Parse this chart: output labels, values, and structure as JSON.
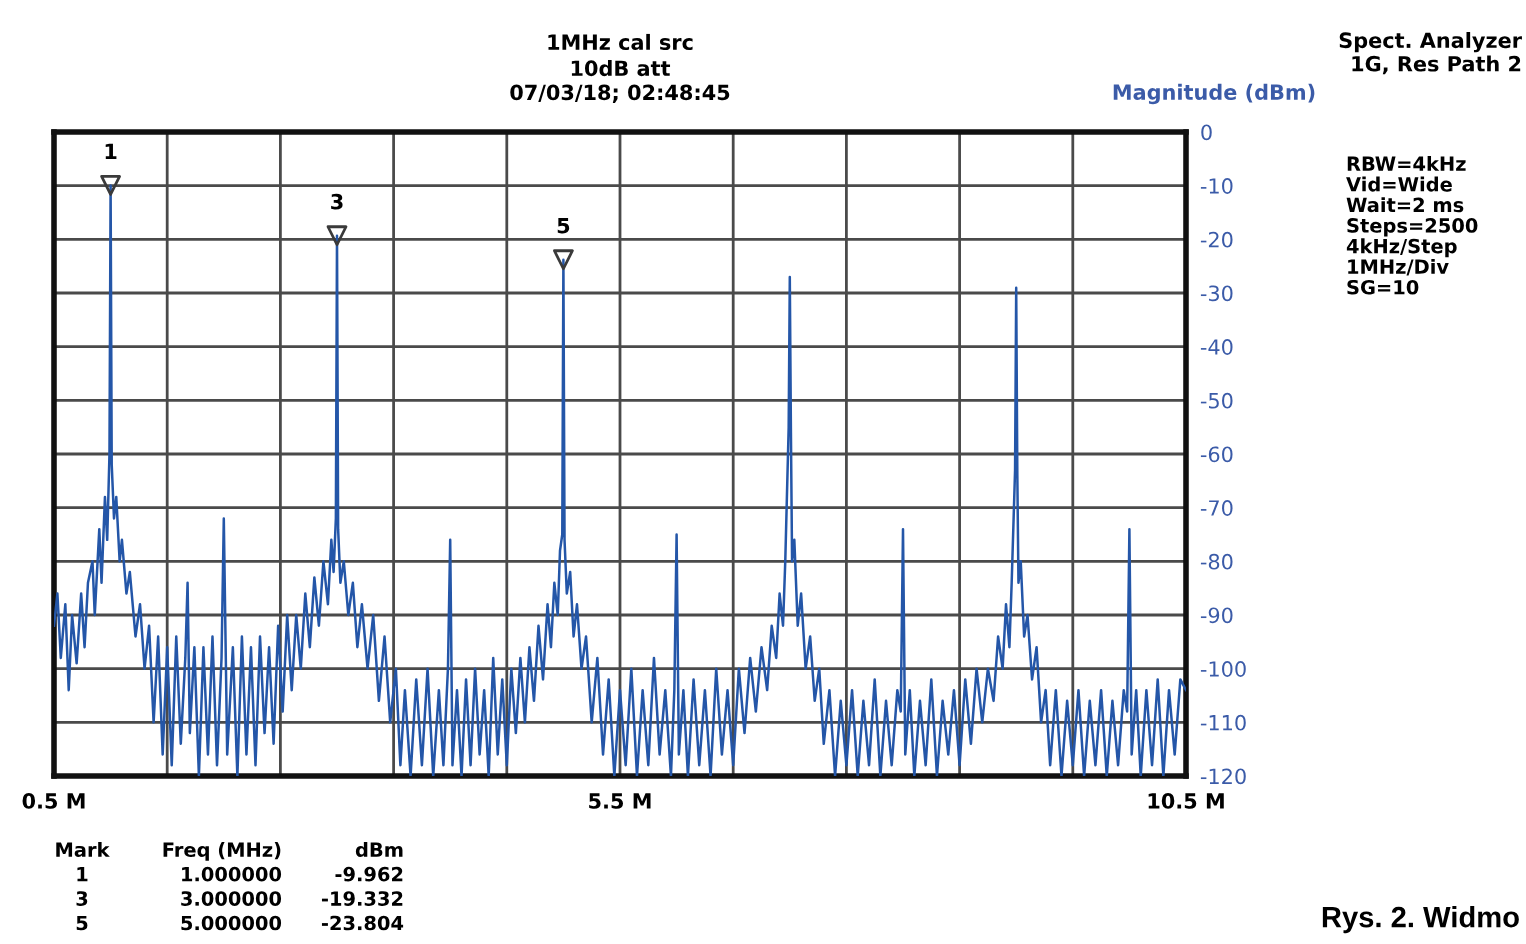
{
  "chart_data": {
    "type": "line",
    "title": "1MHz cal src",
    "subtitle": "10dB att\n07/03/18; 02:48:45",
    "ylabel": "Magnitude (dBm)",
    "xlim": [
      0.5,
      10.5
    ],
    "ylim": [
      -120,
      0
    ],
    "xticks": [
      {
        "value": 0.5,
        "label": "0.5 M"
      },
      {
        "value": 1.5,
        "label": null
      },
      {
        "value": 2.5,
        "label": null
      },
      {
        "value": 3.5,
        "label": null
      },
      {
        "value": 4.5,
        "label": null
      },
      {
        "value": 5.5,
        "label": "5.5 M"
      },
      {
        "value": 6.5,
        "label": null
      },
      {
        "value": 7.5,
        "label": null
      },
      {
        "value": 8.5,
        "label": null
      },
      {
        "value": 9.5,
        "label": null
      },
      {
        "value": 10.5,
        "label": "10.5 M"
      }
    ],
    "yticks": [
      0,
      -10,
      -20,
      -30,
      -40,
      -50,
      -60,
      -70,
      -80,
      -90,
      -100,
      -110,
      -120
    ],
    "grid": true,
    "series": [
      {
        "color": "#2456a8",
        "x": [
          0.5,
          0.53,
          0.56,
          0.6,
          0.63,
          0.66,
          0.7,
          0.74,
          0.77,
          0.8,
          0.84,
          0.86,
          0.9,
          0.92,
          0.95,
          0.97,
          0.99,
          1.0,
          1.01,
          1.03,
          1.05,
          1.08,
          1.1,
          1.14,
          1.17,
          1.22,
          1.26,
          1.3,
          1.34,
          1.38,
          1.42,
          1.46,
          1.5,
          1.54,
          1.58,
          1.62,
          1.66,
          1.68,
          1.7,
          1.74,
          1.78,
          1.82,
          1.86,
          1.9,
          1.94,
          1.98,
          2.0,
          2.03,
          2.08,
          2.12,
          2.16,
          2.2,
          2.24,
          2.28,
          2.32,
          2.36,
          2.4,
          2.44,
          2.48,
          2.52,
          2.56,
          2.6,
          2.64,
          2.68,
          2.72,
          2.76,
          2.8,
          2.84,
          2.88,
          2.92,
          2.95,
          2.97,
          2.99,
          3.0,
          3.01,
          3.03,
          3.06,
          3.1,
          3.14,
          3.18,
          3.22,
          3.27,
          3.32,
          3.37,
          3.42,
          3.47,
          3.52,
          3.56,
          3.6,
          3.65,
          3.7,
          3.75,
          3.8,
          3.85,
          3.9,
          3.94,
          3.98,
          4.0,
          4.02,
          4.06,
          4.1,
          4.14,
          4.18,
          4.22,
          4.26,
          4.3,
          4.34,
          4.38,
          4.42,
          4.46,
          4.5,
          4.54,
          4.58,
          4.62,
          4.66,
          4.7,
          4.74,
          4.78,
          4.82,
          4.86,
          4.89,
          4.92,
          4.95,
          4.97,
          4.99,
          5.0,
          5.01,
          5.03,
          5.06,
          5.09,
          5.12,
          5.16,
          5.2,
          5.25,
          5.3,
          5.35,
          5.4,
          5.45,
          5.5,
          5.55,
          5.6,
          5.65,
          5.7,
          5.75,
          5.8,
          5.85,
          5.9,
          5.95,
          5.98,
          6.0,
          6.02,
          6.06,
          6.1,
          6.15,
          6.2,
          6.25,
          6.3,
          6.35,
          6.4,
          6.45,
          6.5,
          6.55,
          6.6,
          6.65,
          6.7,
          6.75,
          6.8,
          6.84,
          6.88,
          6.91,
          6.94,
          6.96,
          6.99,
          7.0,
          7.01,
          7.02,
          7.04,
          7.07,
          7.1,
          7.14,
          7.18,
          7.22,
          7.26,
          7.3,
          7.35,
          7.4,
          7.45,
          7.5,
          7.55,
          7.6,
          7.65,
          7.7,
          7.75,
          7.8,
          7.85,
          7.9,
          7.95,
          7.98,
          8.0,
          8.02,
          8.06,
          8.1,
          8.15,
          8.2,
          8.25,
          8.3,
          8.35,
          8.4,
          8.45,
          8.5,
          8.55,
          8.6,
          8.65,
          8.7,
          8.75,
          8.8,
          8.84,
          8.88,
          8.91,
          8.94,
          8.96,
          8.99,
          9.0,
          9.01,
          9.02,
          9.04,
          9.07,
          9.1,
          9.14,
          9.18,
          9.22,
          9.26,
          9.3,
          9.35,
          9.4,
          9.45,
          9.5,
          9.55,
          9.6,
          9.65,
          9.7,
          9.75,
          9.8,
          9.85,
          9.9,
          9.95,
          9.98,
          10.0,
          10.02,
          10.06,
          10.1,
          10.15,
          10.2,
          10.25,
          10.3,
          10.35,
          10.4,
          10.45,
          10.5
        ],
        "values": [
          -92,
          -86,
          -98,
          -88,
          -104,
          -90,
          -99,
          -86,
          -96,
          -84,
          -80,
          -90,
          -74,
          -84,
          -68,
          -76,
          -60,
          -9.962,
          -62,
          -72,
          -68,
          -80,
          -76,
          -86,
          -82,
          -94,
          -88,
          -100,
          -92,
          -110,
          -94,
          -116,
          -96,
          -118,
          -94,
          -114,
          -98,
          -84,
          -112,
          -96,
          -120,
          -96,
          -116,
          -94,
          -118,
          -98,
          -72,
          -116,
          -96,
          -120,
          -94,
          -116,
          -96,
          -118,
          -94,
          -112,
          -96,
          -114,
          -92,
          -108,
          -90,
          -104,
          -90,
          -100,
          -86,
          -96,
          -83,
          -92,
          -80,
          -88,
          -76,
          -82,
          -72,
          -19.332,
          -74,
          -84,
          -80,
          -90,
          -84,
          -96,
          -88,
          -100,
          -90,
          -106,
          -94,
          -110,
          -100,
          -118,
          -104,
          -120,
          -102,
          -118,
          -100,
          -120,
          -104,
          -118,
          -100,
          -76,
          -118,
          -104,
          -120,
          -102,
          -118,
          -100,
          -116,
          -104,
          -120,
          -98,
          -116,
          -102,
          -118,
          -100,
          -112,
          -98,
          -110,
          -96,
          -106,
          -92,
          -102,
          -88,
          -96,
          -84,
          -90,
          -78,
          -75,
          -23.804,
          -76,
          -86,
          -82,
          -94,
          -88,
          -100,
          -94,
          -110,
          -98,
          -116,
          -102,
          -120,
          -104,
          -118,
          -100,
          -120,
          -104,
          -118,
          -98,
          -116,
          -104,
          -120,
          -104,
          -75,
          -116,
          -104,
          -120,
          -102,
          -118,
          -104,
          -120,
          -100,
          -116,
          -104,
          -118,
          -100,
          -112,
          -98,
          -108,
          -96,
          -104,
          -92,
          -98,
          -86,
          -92,
          -80,
          -55,
          -27,
          -56,
          -80,
          -76,
          -92,
          -86,
          -100,
          -94,
          -106,
          -100,
          -114,
          -104,
          -120,
          -106,
          -118,
          -104,
          -120,
          -106,
          -118,
          -102,
          -120,
          -106,
          -118,
          -104,
          -108,
          -74,
          -116,
          -104,
          -120,
          -106,
          -118,
          -102,
          -120,
          -106,
          -116,
          -104,
          -118,
          -102,
          -114,
          -100,
          -110,
          -100,
          -106,
          -94,
          -100,
          -88,
          -96,
          -84,
          -63,
          -29,
          -64,
          -84,
          -80,
          -94,
          -90,
          -102,
          -96,
          -110,
          -104,
          -118,
          -104,
          -120,
          -106,
          -118,
          -104,
          -120,
          -106,
          -118,
          -104,
          -120,
          -106,
          -118,
          -104,
          -108,
          -74,
          -116,
          -104,
          -120,
          -104,
          -118,
          -102,
          -120,
          -104,
          -116,
          -102,
          -104
        ]
      },
      {
        "type": "scatter",
        "color": "#3a3a3a",
        "marker": "triangle",
        "x": [
          1.0,
          3.0,
          5.0
        ],
        "values": [
          -9.962,
          -19.332,
          -23.804
        ]
      }
    ],
    "annotations": [
      "Spect. Analyzer\n1G, Res Path 2",
      "RBW=4kHz\nVid=Wide\nWait=2 ms\nSteps=2500\n4kHz/Step\n1MHz/Div\nSG=10",
      "Mark\n1\n3\n5",
      "Freq (MHz)\n1.000000\n3.000000\n5.000000",
      "dBm\n-9.962\n-19.332\n-23.804",
      "Rys. 2. Widmo",
      {
        "text": "1",
        "x": 1.0,
        "y": -9.962
      },
      {
        "text": "3",
        "x": 3.0,
        "y": -19.332
      },
      {
        "text": "5",
        "x": 5.0,
        "y": -23.804
      }
    ]
  }
}
